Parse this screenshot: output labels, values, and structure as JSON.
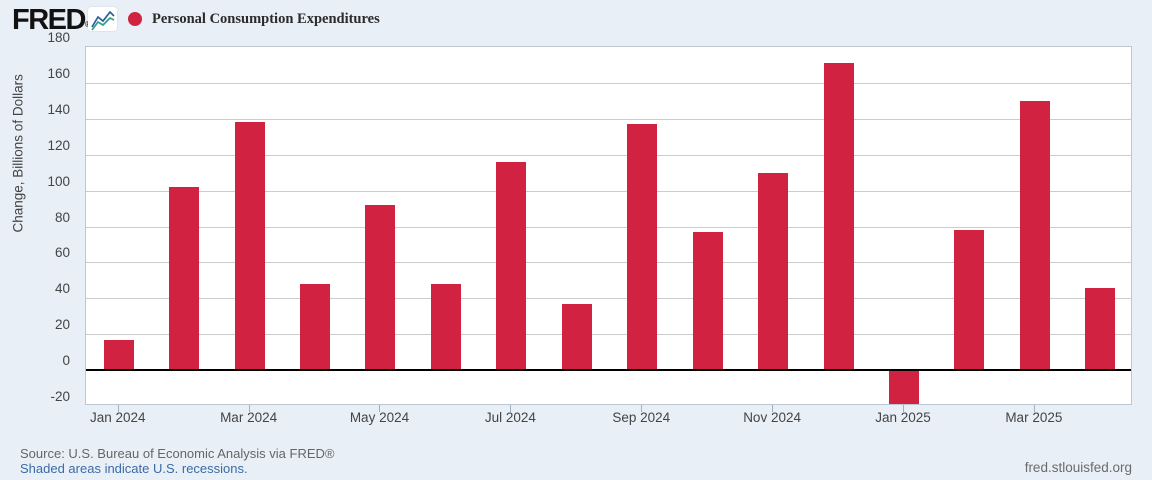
{
  "header": {
    "logo_text": "FRED",
    "logo_registered_mark": "®"
  },
  "chart_data": {
    "type": "bar",
    "title": "Personal Consumption Expenditures",
    "xlabel": "",
    "ylabel": "Change, Billions of Dollars",
    "categories": [
      "Jan 2024",
      "Feb 2024",
      "Mar 2024",
      "Apr 2024",
      "May 2024",
      "Jun 2024",
      "Jul 2024",
      "Aug 2024",
      "Sep 2024",
      "Oct 2024",
      "Nov 2024",
      "Dec 2024",
      "Jan 2025",
      "Feb 2025",
      "Mar 2025",
      "Apr 2025"
    ],
    "values": [
      17,
      102,
      138,
      48,
      92,
      48,
      116,
      37,
      137,
      77,
      110,
      171,
      -19,
      78,
      150,
      46
    ],
    "x_tick_labels": [
      "Jan 2024",
      "Mar 2024",
      "May 2024",
      "Jul 2024",
      "Sep 2024",
      "Nov 2024",
      "Jan 2025",
      "Mar 2025"
    ],
    "y_ticks": [
      180,
      160,
      140,
      120,
      100,
      80,
      60,
      40,
      20,
      0,
      -20
    ],
    "ylim": [
      -20,
      180
    ],
    "grid": true,
    "legend_position": "top-left",
    "bar_color": "#d12242"
  },
  "colors": {
    "accent_red": "#d12242",
    "link_blue": "#3b6ba5",
    "axis_text": "#444444",
    "muted_text": "#666666",
    "background": "#e8eff7"
  },
  "footer": {
    "source_text": "Source: U.S. Bureau of Economic Analysis via FRED®",
    "recessions_note": "Shaded areas indicate U.S. recessions.",
    "site_link": "fred.stlouisfed.org"
  }
}
